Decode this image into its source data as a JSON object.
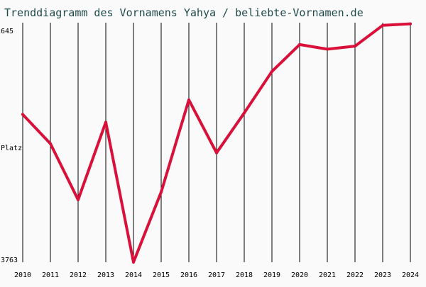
{
  "chart_data": {
    "type": "line",
    "title": "Trenddiagramm des Vornamens Yahya / beliebte-Vornamen.de",
    "ylabel": "Platz",
    "y_axis": {
      "inverted": true,
      "top_label": "645",
      "bottom_label": "3763",
      "ylim": [
        645,
        3763
      ]
    },
    "grid": "vertical",
    "x": [
      "2010",
      "2011",
      "2012",
      "2013",
      "2014",
      "2015",
      "2016",
      "2017",
      "2018",
      "2019",
      "2020",
      "2021",
      "2022",
      "2023",
      "2024"
    ],
    "series": [
      {
        "name": "",
        "values": [
          1840,
          2220,
          2950,
          1940,
          3763,
          2850,
          1650,
          2340,
          1820,
          1280,
          930,
          990,
          950,
          680,
          660
        ]
      }
    ],
    "colors": {
      "line": "#d8103a",
      "grid": "#000000",
      "background": "#fafafa",
      "title": "#1f4a4a",
      "axis_text": "#000000"
    }
  }
}
